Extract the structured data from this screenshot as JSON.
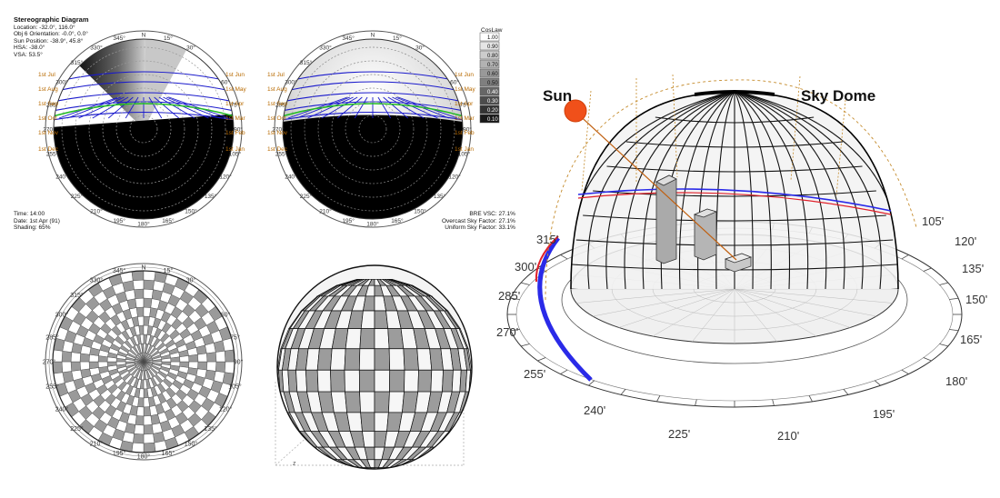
{
  "stereo": {
    "title": "Stereographic Diagram",
    "info_lines": [
      "Location: -32.0°, 116.0°",
      "Obj 6 Orientation: -0.0°, 0.0°",
      "Sun Position: -38.9°, 45.8°",
      "HSA: -38.0°",
      "VSA: 53.5°"
    ],
    "bottom_left_lines": [
      "Time: 14:00",
      "Date: 1st Apr (91)",
      "Shading: 65%"
    ],
    "bottom_right_lines": [
      "BRE VSC: 27.1%",
      "Overcast Sky Factor: 27.1%",
      "Uniform Sky Factor: 33.1%"
    ],
    "legend_title": "CosLaw",
    "legend_values": [
      "1.00",
      "0.90",
      "0.80",
      "0.70",
      "0.60",
      "0.50",
      "0.40",
      "0.30",
      "0.20",
      "0.10"
    ],
    "dial_labels": [
      "N",
      "15°",
      "30°",
      "60°",
      "75°",
      "90°",
      "105°",
      "120°",
      "135°",
      "150°",
      "165°",
      "180°",
      "195°",
      "210°",
      "225°",
      "240°",
      "255°",
      "270°",
      "285°",
      "300°",
      "315°",
      "330°",
      "345°"
    ],
    "left_dates": [
      "1st Jul",
      "1st Aug",
      "1st Sep",
      "1st Oct",
      "1st Nov",
      "1st Dec"
    ],
    "right_dates": [
      "1st Jun",
      "1st May",
      "1st Apr",
      "1st Mar",
      "1st Feb",
      "1st Jan"
    ]
  },
  "sky_dome": {
    "sun_label": "Sun",
    "dome_label": "Sky Dome",
    "angle_labels": [
      "105'",
      "120'",
      "135'",
      "150'",
      "165'",
      "180'",
      "195'",
      "210'",
      "225'",
      "240'",
      "255'",
      "270'",
      "285'",
      "300'",
      "315'"
    ]
  },
  "colors": {
    "sun": "#f0501a",
    "sun_path_red": "#e0202a",
    "sun_path_blue": "#2a2ae8",
    "date_label": "#b86a00",
    "grid_blue": "#1a1acc",
    "horizon_green": "#22bb22"
  }
}
